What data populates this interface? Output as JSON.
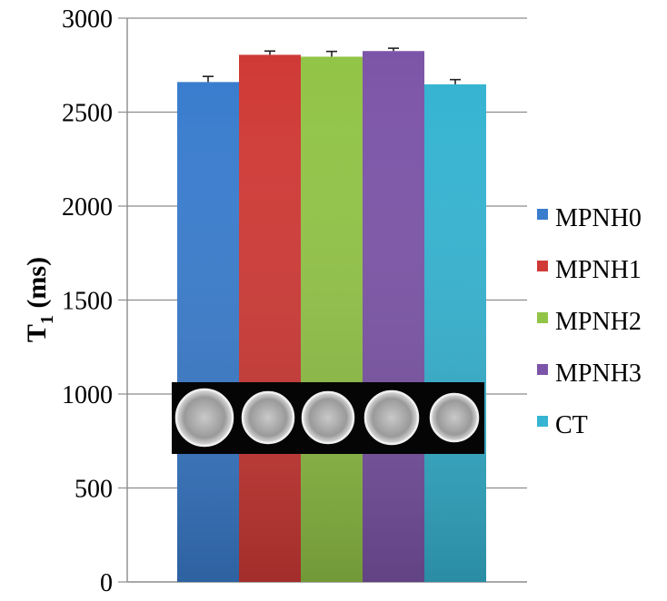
{
  "chart_data": {
    "type": "bar",
    "ylabel_main": "T",
    "ylabel_subscript": "1",
    "ylabel_unit": " (ms)",
    "xlabel": "",
    "ylim": [
      0,
      3000
    ],
    "yticks": [
      0,
      500,
      1000,
      1500,
      2000,
      2500,
      3000
    ],
    "grid": "horizontal",
    "legend_position": "right",
    "series": [
      {
        "name": "MPNH0",
        "value": 2660,
        "error": 30,
        "color": "#3a7dce"
      },
      {
        "name": "MPNH1",
        "value": 2805,
        "error": 20,
        "color": "#d03a36"
      },
      {
        "name": "MPNH2",
        "value": 2795,
        "error": 28,
        "color": "#92c447"
      },
      {
        "name": "MPNH3",
        "value": 2825,
        "error": 15,
        "color": "#7d55a8"
      },
      {
        "name": "CT",
        "value": 2648,
        "error": 25,
        "color": "#36b4d2"
      }
    ],
    "inset": {
      "description_icon": "mri-phantom-image",
      "sample_count": 5
    }
  }
}
